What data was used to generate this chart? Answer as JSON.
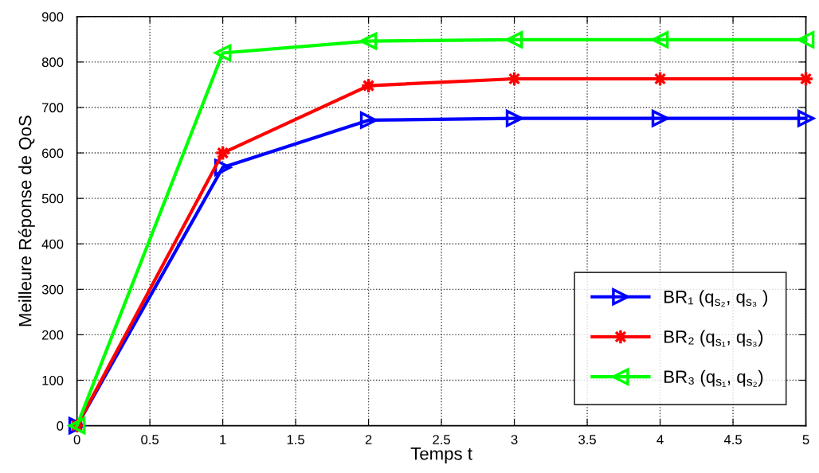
{
  "chart_data": {
    "type": "line",
    "xlabel": "Temps t",
    "ylabel": "Meilleure Réponse de QoS",
    "x": [
      0,
      1,
      2,
      3,
      4,
      5
    ],
    "series": [
      {
        "name": "BR₁ (q$_{s₂}$, q$_{s₃}$ )",
        "color": "#0000ff",
        "marker": "triangle",
        "values": [
          0,
          568,
          672,
          676,
          676,
          676
        ]
      },
      {
        "name": "BR₂ (q$_{s₁}$, q$_{s₃}$)",
        "color": "#ff0000",
        "marker": "star",
        "values": [
          0,
          600,
          748,
          763,
          763,
          763
        ]
      },
      {
        "name": "BR₃ (q$_{s₁}$, q$_{s₂}$)",
        "color": "#00ff00",
        "marker": "triangle",
        "values": [
          0,
          820,
          846,
          849,
          849,
          849
        ]
      }
    ],
    "xlim": [
      0,
      5
    ],
    "ylim": [
      0,
      900
    ],
    "xticks": [
      0,
      0.5,
      1,
      1.5,
      2,
      2.5,
      3,
      3.5,
      4,
      4.5,
      5
    ],
    "yticks": [
      0,
      100,
      200,
      300,
      400,
      500,
      600,
      700,
      800,
      900
    ],
    "grid": true,
    "legend": "bottom right",
    "line_style": "solid"
  }
}
